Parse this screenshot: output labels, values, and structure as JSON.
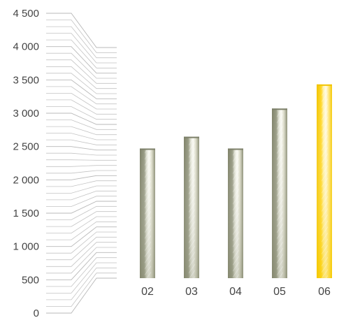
{
  "chart_data": {
    "type": "bar",
    "title": "",
    "xlabel": "",
    "ylabel": "",
    "categories": [
      "02",
      "03",
      "04",
      "05",
      "06"
    ],
    "series": [
      {
        "values": [
          2530,
          2760,
          2530,
          3310,
          3780
        ]
      }
    ],
    "highlight_index": 4,
    "ylim": [
      0,
      4500
    ],
    "yticks": [
      0,
      500,
      1000,
      1500,
      2000,
      2500,
      3000,
      3500,
      4000,
      4500
    ],
    "ytick_labels": [
      "0",
      "500",
      "1 000",
      "1 500",
      "2 000",
      "2 500",
      "3 000",
      "3 500",
      "4 000",
      "4 500"
    ],
    "grid": false,
    "legend": "none",
    "colors": {
      "bar": "#8e9178",
      "bar_highlight": "#f7cc00",
      "leader_lines": "#c4c4c4",
      "text": "#444444"
    }
  }
}
